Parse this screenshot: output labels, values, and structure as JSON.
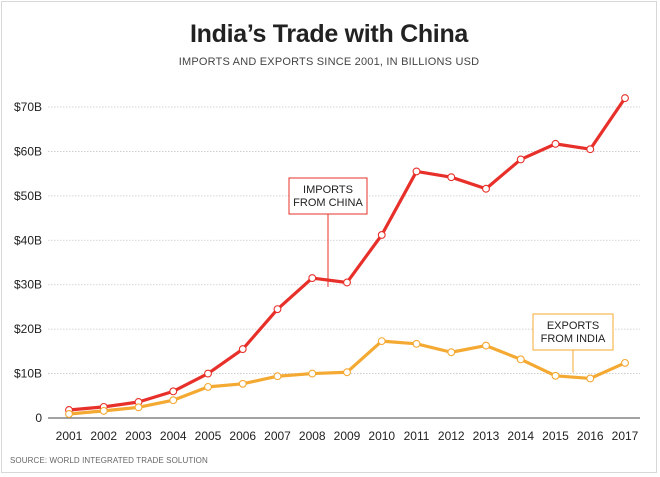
{
  "chart_data": {
    "type": "line",
    "title": "India’s Trade with China",
    "subtitle": "IMPORTS AND EXPORTS SINCE 2001, IN BILLIONS USD",
    "source": "SOURCE: WORLD INTEGRATED TRADE SOLUTION",
    "x": [
      "2001",
      "2002",
      "2003",
      "2004",
      "2005",
      "2006",
      "2007",
      "2008",
      "2009",
      "2010",
      "2011",
      "2012",
      "2013",
      "2014",
      "2015",
      "2016",
      "2017"
    ],
    "ylim": [
      0,
      70
    ],
    "yticks": [
      {
        "value": 0,
        "label": "0"
      },
      {
        "value": 10,
        "label": "$10B"
      },
      {
        "value": 20,
        "label": "$20B"
      },
      {
        "value": 30,
        "label": "$30B"
      },
      {
        "value": 40,
        "label": "$40B"
      },
      {
        "value": 50,
        "label": "$50B"
      },
      {
        "value": 60,
        "label": "$60B"
      },
      {
        "value": 70,
        "label": "$70B"
      }
    ],
    "grid": true,
    "series": [
      {
        "key": "imports",
        "name": "IMPORTS FROM CHINA",
        "callout_lines": [
          "IMPORTS",
          "FROM CHINA"
        ],
        "color": "#e8302a",
        "values": [
          1.8,
          2.5,
          3.6,
          6.0,
          10.0,
          15.5,
          24.5,
          31.5,
          30.5,
          41.2,
          55.5,
          54.2,
          51.6,
          58.2,
          61.7,
          60.5,
          72.0
        ]
      },
      {
        "key": "exports",
        "name": "EXPORTS FROM INDIA",
        "callout_lines": [
          "EXPORTS",
          "FROM INDIA"
        ],
        "color": "#f4a933",
        "values": [
          0.9,
          1.6,
          2.4,
          4.0,
          7.0,
          7.7,
          9.4,
          10.0,
          10.3,
          17.3,
          16.7,
          14.8,
          16.3,
          13.2,
          9.5,
          8.9,
          12.4
        ]
      }
    ]
  }
}
